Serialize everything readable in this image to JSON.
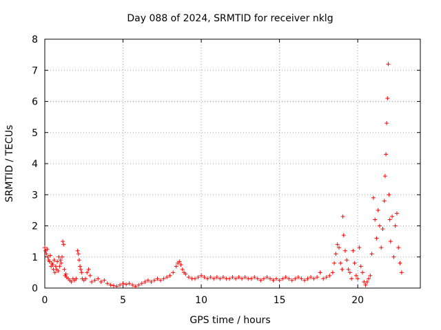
{
  "chart_data": {
    "type": "scatter",
    "title": "Day 088 of 2024, SRMTID for receiver nklg",
    "xlabel": "GPS time / hours",
    "ylabel": "SRMTID / TECUs",
    "xlim": [
      0,
      24
    ],
    "ylim": [
      0,
      8
    ],
    "x_ticks": [
      0,
      5,
      10,
      15,
      20
    ],
    "y_ticks": [
      0,
      1,
      2,
      3,
      4,
      5,
      6,
      7,
      8
    ],
    "grid": true,
    "marker": "plus",
    "color": "#ff0000",
    "series": [
      {
        "name": "SRMTID",
        "points": [
          [
            0.0,
            1.3
          ],
          [
            0.05,
            1.2
          ],
          [
            0.1,
            1.1
          ],
          [
            0.15,
            1.25
          ],
          [
            0.2,
            1.0
          ],
          [
            0.25,
            0.9
          ],
          [
            0.3,
            0.85
          ],
          [
            0.35,
            1.05
          ],
          [
            0.4,
            0.7
          ],
          [
            0.45,
            0.8
          ],
          [
            0.5,
            0.75
          ],
          [
            0.55,
            0.6
          ],
          [
            0.6,
            0.9
          ],
          [
            0.65,
            0.5
          ],
          [
            0.7,
            0.7
          ],
          [
            0.75,
            0.6
          ],
          [
            0.8,
            0.85
          ],
          [
            0.85,
            0.55
          ],
          [
            0.9,
            1.0
          ],
          [
            0.95,
            0.7
          ],
          [
            1.0,
            0.9
          ],
          [
            1.05,
            0.8
          ],
          [
            1.1,
            1.0
          ],
          [
            1.15,
            1.5
          ],
          [
            1.2,
            1.4
          ],
          [
            1.25,
            0.6
          ],
          [
            1.3,
            0.4
          ],
          [
            1.35,
            0.45
          ],
          [
            1.4,
            0.35
          ],
          [
            1.5,
            0.3
          ],
          [
            1.6,
            0.25
          ],
          [
            1.7,
            0.2
          ],
          [
            1.8,
            0.3
          ],
          [
            1.9,
            0.25
          ],
          [
            2.0,
            0.3
          ],
          [
            2.1,
            1.2
          ],
          [
            2.15,
            1.1
          ],
          [
            2.2,
            0.9
          ],
          [
            2.25,
            0.7
          ],
          [
            2.3,
            0.6
          ],
          [
            2.35,
            0.5
          ],
          [
            2.4,
            0.3
          ],
          [
            2.5,
            0.25
          ],
          [
            2.6,
            0.3
          ],
          [
            2.7,
            0.5
          ],
          [
            2.8,
            0.6
          ],
          [
            2.9,
            0.4
          ],
          [
            3.0,
            0.2
          ],
          [
            3.2,
            0.25
          ],
          [
            3.4,
            0.3
          ],
          [
            3.6,
            0.2
          ],
          [
            3.8,
            0.25
          ],
          [
            4.0,
            0.15
          ],
          [
            4.2,
            0.1
          ],
          [
            4.4,
            0.08
          ],
          [
            4.6,
            0.05
          ],
          [
            4.8,
            0.1
          ],
          [
            5.0,
            0.15
          ],
          [
            5.2,
            0.12
          ],
          [
            5.4,
            0.15
          ],
          [
            5.6,
            0.1
          ],
          [
            5.8,
            0.05
          ],
          [
            6.0,
            0.1
          ],
          [
            6.2,
            0.15
          ],
          [
            6.4,
            0.2
          ],
          [
            6.6,
            0.25
          ],
          [
            6.8,
            0.2
          ],
          [
            7.0,
            0.25
          ],
          [
            7.2,
            0.3
          ],
          [
            7.4,
            0.25
          ],
          [
            7.6,
            0.3
          ],
          [
            7.8,
            0.35
          ],
          [
            8.0,
            0.4
          ],
          [
            8.2,
            0.5
          ],
          [
            8.4,
            0.7
          ],
          [
            8.5,
            0.8
          ],
          [
            8.6,
            0.85
          ],
          [
            8.7,
            0.75
          ],
          [
            8.8,
            0.6
          ],
          [
            8.9,
            0.5
          ],
          [
            9.0,
            0.45
          ],
          [
            9.2,
            0.35
          ],
          [
            9.4,
            0.3
          ],
          [
            9.6,
            0.3
          ],
          [
            9.8,
            0.35
          ],
          [
            10.0,
            0.4
          ],
          [
            10.2,
            0.35
          ],
          [
            10.4,
            0.3
          ],
          [
            10.6,
            0.35
          ],
          [
            10.8,
            0.3
          ],
          [
            11.0,
            0.35
          ],
          [
            11.2,
            0.3
          ],
          [
            11.4,
            0.35
          ],
          [
            11.6,
            0.3
          ],
          [
            11.8,
            0.3
          ],
          [
            12.0,
            0.35
          ],
          [
            12.2,
            0.3
          ],
          [
            12.4,
            0.35
          ],
          [
            12.6,
            0.3
          ],
          [
            12.8,
            0.35
          ],
          [
            13.0,
            0.3
          ],
          [
            13.2,
            0.3
          ],
          [
            13.4,
            0.35
          ],
          [
            13.6,
            0.3
          ],
          [
            13.8,
            0.25
          ],
          [
            14.0,
            0.3
          ],
          [
            14.2,
            0.35
          ],
          [
            14.4,
            0.3
          ],
          [
            14.6,
            0.25
          ],
          [
            14.8,
            0.3
          ],
          [
            15.0,
            0.25
          ],
          [
            15.2,
            0.3
          ],
          [
            15.4,
            0.35
          ],
          [
            15.6,
            0.3
          ],
          [
            15.8,
            0.25
          ],
          [
            16.0,
            0.3
          ],
          [
            16.2,
            0.35
          ],
          [
            16.4,
            0.3
          ],
          [
            16.6,
            0.25
          ],
          [
            16.8,
            0.3
          ],
          [
            17.0,
            0.35
          ],
          [
            17.2,
            0.3
          ],
          [
            17.4,
            0.35
          ],
          [
            17.6,
            0.5
          ],
          [
            17.8,
            0.3
          ],
          [
            18.0,
            0.35
          ],
          [
            18.2,
            0.4
          ],
          [
            18.4,
            0.5
          ],
          [
            18.5,
            0.8
          ],
          [
            18.6,
            1.1
          ],
          [
            18.7,
            1.4
          ],
          [
            18.8,
            1.3
          ],
          [
            18.9,
            0.8
          ],
          [
            19.0,
            0.6
          ],
          [
            19.05,
            2.3
          ],
          [
            19.1,
            1.7
          ],
          [
            19.2,
            1.2
          ],
          [
            19.3,
            0.9
          ],
          [
            19.4,
            0.6
          ],
          [
            19.5,
            0.5
          ],
          [
            19.6,
            0.3
          ],
          [
            19.7,
            1.2
          ],
          [
            19.8,
            0.8
          ],
          [
            19.9,
            0.4
          ],
          [
            20.0,
            0.3
          ],
          [
            20.1,
            1.3
          ],
          [
            20.2,
            0.7
          ],
          [
            20.3,
            0.5
          ],
          [
            20.4,
            0.2
          ],
          [
            20.5,
            0.1
          ],
          [
            20.6,
            0.2
          ],
          [
            20.7,
            0.3
          ],
          [
            20.8,
            0.4
          ],
          [
            20.9,
            1.1
          ],
          [
            21.0,
            2.9
          ],
          [
            21.1,
            2.2
          ],
          [
            21.2,
            1.6
          ],
          [
            21.3,
            2.5
          ],
          [
            21.4,
            2.0
          ],
          [
            21.5,
            1.3
          ],
          [
            21.6,
            1.9
          ],
          [
            21.7,
            2.8
          ],
          [
            21.75,
            3.6
          ],
          [
            21.8,
            4.3
          ],
          [
            21.85,
            5.3
          ],
          [
            21.9,
            6.1
          ],
          [
            21.95,
            7.2
          ],
          [
            22.0,
            3.0
          ],
          [
            22.05,
            2.2
          ],
          [
            22.1,
            1.5
          ],
          [
            22.2,
            2.3
          ],
          [
            22.3,
            1.0
          ],
          [
            22.4,
            2.0
          ],
          [
            22.5,
            2.4
          ],
          [
            22.6,
            1.3
          ],
          [
            22.7,
            0.8
          ],
          [
            22.8,
            0.5
          ]
        ]
      }
    ]
  }
}
